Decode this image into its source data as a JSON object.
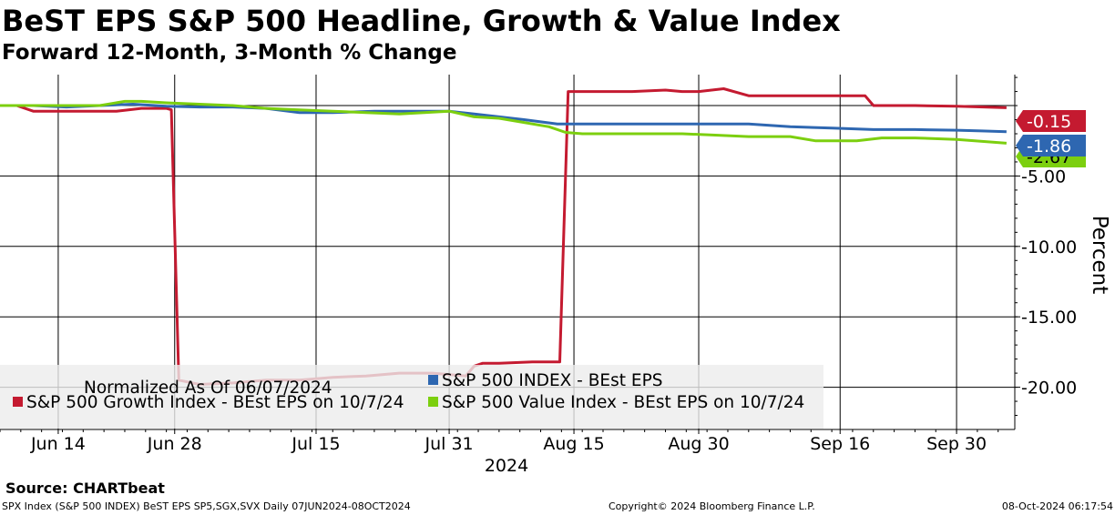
{
  "header": {
    "title": "BeST EPS S&P 500 Headline, Growth & Value Index",
    "subtitle": "Forward 12-Month, 3-Month % Change"
  },
  "footer": {
    "source": "Source: CHARTbeat",
    "ticker_info": "SPX Index (S&P 500 INDEX) BeST EPS SP5,SGX,SVX  Daily 07JUN2024-08OCT2024",
    "copyright": "Copyright© 2024 Bloomberg Finance L.P.",
    "timestamp": "08-Oct-2024 06:17:54"
  },
  "chart_data": {
    "type": "line",
    "title": "BeST EPS S&P 500 Headline, Growth & Value Index",
    "subtitle": "Forward 12-Month, 3-Month % Change",
    "ylabel": "Percent",
    "xlabel": "2024",
    "ylim": [
      -23,
      2.2
    ],
    "xlim": [
      0,
      122
    ],
    "grid": true,
    "legend_position": "bottom-left",
    "legend_note": "Normalized As Of 06/07/2024",
    "x_ticks": [
      {
        "x": 7,
        "label": "Jun 14"
      },
      {
        "x": 21,
        "label": "Jun 28"
      },
      {
        "x": 38,
        "label": "Jul 15"
      },
      {
        "x": 54,
        "label": "Jul 31"
      },
      {
        "x": 69,
        "label": "Aug 15"
      },
      {
        "x": 84,
        "label": "Aug 30"
      },
      {
        "x": 101,
        "label": "Sep 16"
      },
      {
        "x": 115,
        "label": "Sep 30"
      }
    ],
    "y_ticks": [
      {
        "value": -5,
        "label": "-5.00"
      },
      {
        "value": -10,
        "label": "-10.00"
      },
      {
        "value": -15,
        "label": "-15.00"
      },
      {
        "value": -20,
        "label": "-20.00"
      }
    ],
    "series": [
      {
        "name": "S&P 500 INDEX - BEst EPS",
        "color": "#2e67b1",
        "last_value_label": "-1.86",
        "x": [
          0,
          4,
          8,
          12,
          16,
          20,
          24,
          28,
          32,
          36,
          40,
          45,
          50,
          54,
          57,
          60,
          63,
          67,
          70,
          74,
          78,
          82,
          86,
          90,
          95,
          100,
          105,
          110,
          115,
          118,
          121
        ],
        "y": [
          0.0,
          0.0,
          -0.1,
          0.0,
          0.1,
          -0.05,
          -0.1,
          -0.1,
          -0.2,
          -0.5,
          -0.5,
          -0.4,
          -0.4,
          -0.4,
          -0.6,
          -0.8,
          -1.0,
          -1.3,
          -1.3,
          -1.3,
          -1.3,
          -1.3,
          -1.3,
          -1.3,
          -1.5,
          -1.6,
          -1.7,
          -1.7,
          -1.75,
          -1.8,
          -1.86
        ]
      },
      {
        "name": "S&P 500 Growth Index - BEst EPS on 10/7/24",
        "color": "#c41a30",
        "last_value_label": "-0.15",
        "x": [
          0,
          2,
          4,
          6,
          10,
          14,
          17,
          20,
          20.6,
          21.5,
          24,
          28,
          32,
          36,
          40,
          44,
          48,
          52,
          56,
          57,
          58,
          60,
          64,
          67.3,
          68.3,
          69,
          72,
          76,
          80,
          82,
          84,
          87,
          90,
          95,
          100,
          104,
          105,
          110,
          115,
          121
        ],
        "y": [
          0.0,
          0.0,
          -0.4,
          -0.4,
          -0.4,
          -0.4,
          -0.2,
          -0.2,
          -0.3,
          -19.5,
          -19.8,
          -19.7,
          -19.5,
          -19.5,
          -19.3,
          -19.2,
          -19.0,
          -19.0,
          -19.2,
          -18.5,
          -18.3,
          -18.3,
          -18.2,
          -18.2,
          1.0,
          1.0,
          1.0,
          1.0,
          1.1,
          1.0,
          1.0,
          1.2,
          0.7,
          0.7,
          0.7,
          0.7,
          0.0,
          0.0,
          -0.05,
          -0.15
        ]
      },
      {
        "name": "S&P 500 Value Index - BEst EPS on 10/7/24",
        "color": "#7ccf0f",
        "last_value_label": "-2.67",
        "x": [
          0,
          4,
          8,
          12,
          15,
          17,
          20,
          24,
          28,
          32,
          36,
          40,
          44,
          48,
          51,
          54,
          57,
          60,
          63,
          66,
          68,
          70,
          74,
          78,
          82,
          86,
          90,
          95,
          98,
          100,
          103,
          106,
          110,
          115,
          121
        ],
        "y": [
          0.0,
          0.0,
          0.0,
          0.0,
          0.3,
          0.3,
          0.2,
          0.1,
          0.0,
          -0.2,
          -0.3,
          -0.4,
          -0.5,
          -0.6,
          -0.5,
          -0.4,
          -0.8,
          -0.9,
          -1.2,
          -1.5,
          -1.9,
          -2.0,
          -2.0,
          -2.0,
          -2.0,
          -2.1,
          -2.2,
          -2.2,
          -2.5,
          -2.5,
          -2.5,
          -2.3,
          -2.3,
          -2.4,
          -2.67
        ]
      }
    ]
  }
}
